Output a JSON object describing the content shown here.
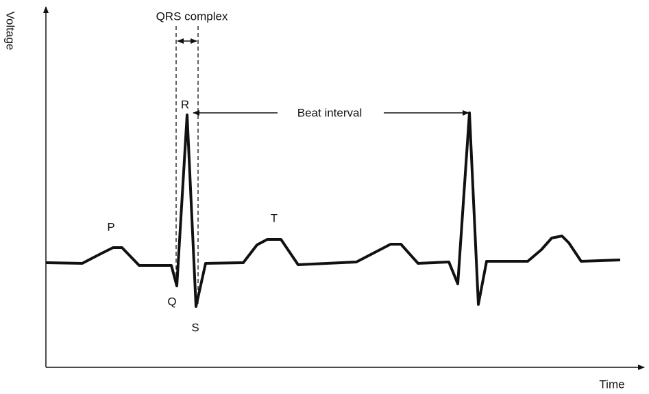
{
  "axes": {
    "y_label": "Voltage",
    "x_label": "Time"
  },
  "annotations": {
    "qrs": "QRS complex",
    "beat_interval": "Beat interval"
  },
  "waves": {
    "p": "P",
    "q": "Q",
    "r": "R",
    "s": "S",
    "t": "T"
  }
}
